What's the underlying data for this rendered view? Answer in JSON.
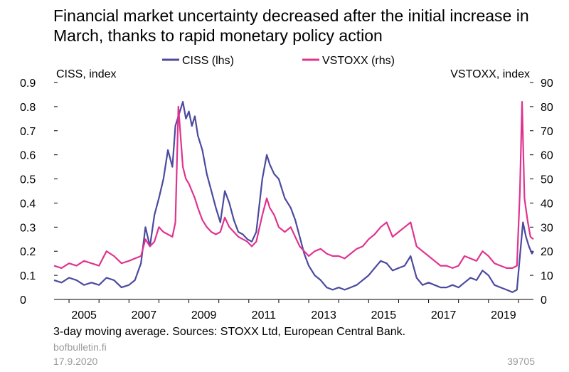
{
  "chart_data": {
    "type": "line",
    "title": "Financial market uncertainty decreased after the initial increase in March, thanks to rapid monetary policy action",
    "ylabel_left": "CISS, index",
    "ylabel_right": "VSTOXX, index",
    "ylim_left": [
      0,
      0.9
    ],
    "ylim_right": [
      0,
      90
    ],
    "yticks_left": [
      "0",
      "0.1",
      "0.2",
      "0.3",
      "0.4",
      "0.5",
      "0.6",
      "0.7",
      "0.8",
      "0.9"
    ],
    "yticks_right": [
      "0",
      "10",
      "20",
      "30",
      "40",
      "50",
      "60",
      "70",
      "80",
      "90"
    ],
    "xlim": [
      2004.5,
      2020.5
    ],
    "xticks": [
      "2005",
      "2007",
      "2009",
      "2011",
      "2013",
      "2015",
      "2017",
      "2019"
    ],
    "grid": false,
    "legend_position": "top",
    "series": [
      {
        "name": "CISS (lhs)",
        "axis": "left",
        "color": "#4b4a9f",
        "points": [
          [
            2004.5,
            0.08
          ],
          [
            2004.75,
            0.07
          ],
          [
            2005.0,
            0.09
          ],
          [
            2005.25,
            0.08
          ],
          [
            2005.5,
            0.06
          ],
          [
            2005.75,
            0.07
          ],
          [
            2006.0,
            0.06
          ],
          [
            2006.25,
            0.09
          ],
          [
            2006.5,
            0.08
          ],
          [
            2006.75,
            0.05
          ],
          [
            2007.0,
            0.06
          ],
          [
            2007.2,
            0.08
          ],
          [
            2007.4,
            0.15
          ],
          [
            2007.55,
            0.3
          ],
          [
            2007.7,
            0.22
          ],
          [
            2007.85,
            0.35
          ],
          [
            2008.0,
            0.42
          ],
          [
            2008.15,
            0.5
          ],
          [
            2008.3,
            0.62
          ],
          [
            2008.45,
            0.55
          ],
          [
            2008.55,
            0.72
          ],
          [
            2008.7,
            0.78
          ],
          [
            2008.8,
            0.82
          ],
          [
            2008.9,
            0.75
          ],
          [
            2009.0,
            0.78
          ],
          [
            2009.1,
            0.72
          ],
          [
            2009.2,
            0.76
          ],
          [
            2009.3,
            0.68
          ],
          [
            2009.45,
            0.62
          ],
          [
            2009.6,
            0.52
          ],
          [
            2009.75,
            0.45
          ],
          [
            2009.9,
            0.38
          ],
          [
            2010.05,
            0.32
          ],
          [
            2010.2,
            0.45
          ],
          [
            2010.35,
            0.4
          ],
          [
            2010.5,
            0.33
          ],
          [
            2010.65,
            0.28
          ],
          [
            2010.8,
            0.27
          ],
          [
            2010.95,
            0.25
          ],
          [
            2011.1,
            0.24
          ],
          [
            2011.25,
            0.28
          ],
          [
            2011.45,
            0.5
          ],
          [
            2011.6,
            0.6
          ],
          [
            2011.7,
            0.56
          ],
          [
            2011.85,
            0.52
          ],
          [
            2012.0,
            0.5
          ],
          [
            2012.2,
            0.42
          ],
          [
            2012.4,
            0.38
          ],
          [
            2012.55,
            0.33
          ],
          [
            2012.7,
            0.26
          ],
          [
            2012.85,
            0.19
          ],
          [
            2013.0,
            0.14
          ],
          [
            2013.2,
            0.1
          ],
          [
            2013.4,
            0.08
          ],
          [
            2013.6,
            0.05
          ],
          [
            2013.8,
            0.04
          ],
          [
            2014.0,
            0.05
          ],
          [
            2014.2,
            0.04
          ],
          [
            2014.4,
            0.05
          ],
          [
            2014.6,
            0.06
          ],
          [
            2014.8,
            0.08
          ],
          [
            2015.0,
            0.1
          ],
          [
            2015.2,
            0.13
          ],
          [
            2015.4,
            0.16
          ],
          [
            2015.6,
            0.15
          ],
          [
            2015.8,
            0.12
          ],
          [
            2016.0,
            0.13
          ],
          [
            2016.2,
            0.14
          ],
          [
            2016.4,
            0.18
          ],
          [
            2016.6,
            0.09
          ],
          [
            2016.8,
            0.06
          ],
          [
            2017.0,
            0.07
          ],
          [
            2017.2,
            0.06
          ],
          [
            2017.4,
            0.05
          ],
          [
            2017.6,
            0.05
          ],
          [
            2017.8,
            0.06
          ],
          [
            2018.0,
            0.05
          ],
          [
            2018.2,
            0.07
          ],
          [
            2018.4,
            0.09
          ],
          [
            2018.6,
            0.08
          ],
          [
            2018.8,
            0.12
          ],
          [
            2019.0,
            0.1
          ],
          [
            2019.2,
            0.06
          ],
          [
            2019.4,
            0.05
          ],
          [
            2019.6,
            0.04
          ],
          [
            2019.8,
            0.03
          ],
          [
            2019.95,
            0.04
          ],
          [
            2020.05,
            0.18
          ],
          [
            2020.15,
            0.32
          ],
          [
            2020.25,
            0.26
          ],
          [
            2020.35,
            0.22
          ],
          [
            2020.45,
            0.19
          ],
          [
            2020.5,
            0.2
          ]
        ]
      },
      {
        "name": "VSTOXX (rhs)",
        "axis": "right",
        "color": "#e0338f",
        "points": [
          [
            2004.5,
            14
          ],
          [
            2004.75,
            13
          ],
          [
            2005.0,
            15
          ],
          [
            2005.25,
            14
          ],
          [
            2005.5,
            16
          ],
          [
            2005.75,
            15
          ],
          [
            2006.0,
            14
          ],
          [
            2006.25,
            20
          ],
          [
            2006.5,
            18
          ],
          [
            2006.75,
            15
          ],
          [
            2007.0,
            16
          ],
          [
            2007.2,
            17
          ],
          [
            2007.4,
            18
          ],
          [
            2007.55,
            25
          ],
          [
            2007.7,
            22
          ],
          [
            2007.85,
            24
          ],
          [
            2008.0,
            30
          ],
          [
            2008.15,
            28
          ],
          [
            2008.3,
            27
          ],
          [
            2008.45,
            26
          ],
          [
            2008.55,
            32
          ],
          [
            2008.65,
            80
          ],
          [
            2008.8,
            55
          ],
          [
            2008.9,
            50
          ],
          [
            2009.0,
            48
          ],
          [
            2009.1,
            45
          ],
          [
            2009.2,
            42
          ],
          [
            2009.3,
            38
          ],
          [
            2009.45,
            33
          ],
          [
            2009.6,
            30
          ],
          [
            2009.75,
            28
          ],
          [
            2009.9,
            27
          ],
          [
            2010.05,
            28
          ],
          [
            2010.2,
            34
          ],
          [
            2010.35,
            30
          ],
          [
            2010.5,
            28
          ],
          [
            2010.65,
            26
          ],
          [
            2010.8,
            25
          ],
          [
            2010.95,
            24
          ],
          [
            2011.1,
            22
          ],
          [
            2011.25,
            24
          ],
          [
            2011.45,
            35
          ],
          [
            2011.6,
            42
          ],
          [
            2011.7,
            38
          ],
          [
            2011.85,
            35
          ],
          [
            2012.0,
            30
          ],
          [
            2012.2,
            28
          ],
          [
            2012.4,
            30
          ],
          [
            2012.55,
            26
          ],
          [
            2012.7,
            22
          ],
          [
            2012.85,
            20
          ],
          [
            2013.0,
            18
          ],
          [
            2013.2,
            20
          ],
          [
            2013.4,
            21
          ],
          [
            2013.6,
            19
          ],
          [
            2013.8,
            18
          ],
          [
            2014.0,
            18
          ],
          [
            2014.2,
            17
          ],
          [
            2014.4,
            19
          ],
          [
            2014.6,
            21
          ],
          [
            2014.8,
            22
          ],
          [
            2015.0,
            25
          ],
          [
            2015.2,
            27
          ],
          [
            2015.4,
            30
          ],
          [
            2015.6,
            32
          ],
          [
            2015.8,
            26
          ],
          [
            2016.0,
            28
          ],
          [
            2016.2,
            30
          ],
          [
            2016.4,
            32
          ],
          [
            2016.6,
            22
          ],
          [
            2016.8,
            20
          ],
          [
            2017.0,
            18
          ],
          [
            2017.2,
            16
          ],
          [
            2017.4,
            14
          ],
          [
            2017.6,
            14
          ],
          [
            2017.8,
            13
          ],
          [
            2018.0,
            14
          ],
          [
            2018.2,
            18
          ],
          [
            2018.4,
            17
          ],
          [
            2018.6,
            16
          ],
          [
            2018.8,
            20
          ],
          [
            2019.0,
            18
          ],
          [
            2019.2,
            15
          ],
          [
            2019.4,
            14
          ],
          [
            2019.6,
            13
          ],
          [
            2019.8,
            13
          ],
          [
            2019.95,
            14
          ],
          [
            2020.05,
            45
          ],
          [
            2020.12,
            82
          ],
          [
            2020.2,
            42
          ],
          [
            2020.3,
            33
          ],
          [
            2020.4,
            26
          ],
          [
            2020.5,
            25
          ]
        ]
      }
    ]
  },
  "footer": {
    "note": "3-day moving average. Sources: STOXX Ltd, European Central Bank.",
    "source": "bofbulletin.fi",
    "date": "17.9.2020",
    "chart_id": "39705"
  }
}
